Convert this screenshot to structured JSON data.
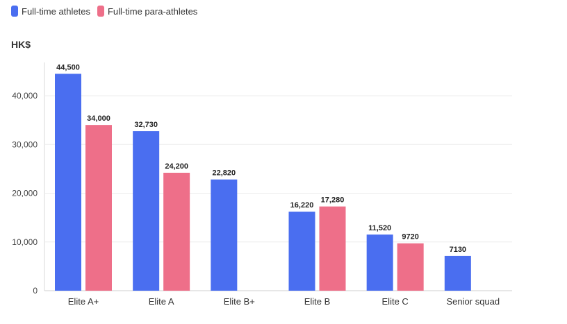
{
  "legend": {
    "items": [
      {
        "label": "Full-time athletes",
        "color": "#4a6ef0"
      },
      {
        "label": "Full-time para-athletes",
        "color": "#ee6f89"
      }
    ]
  },
  "chart_data": {
    "type": "bar",
    "ylabel": "HK$",
    "ylim": [
      0,
      45000
    ],
    "yticks": [
      0,
      10000,
      20000,
      30000,
      40000
    ],
    "ytick_labels": [
      "0",
      "10,000",
      "20,000",
      "30,000",
      "40,000"
    ],
    "grid": true,
    "legend_position": "top-left",
    "categories": [
      "Elite A+",
      "Elite A",
      "Elite B+",
      "Elite B",
      "Elite C",
      "Senior squad"
    ],
    "series": [
      {
        "name": "Full-time athletes",
        "color": "#4a6ef0",
        "values": [
          44500,
          32730,
          22820,
          16220,
          11520,
          7130
        ],
        "labels": [
          "44,500",
          "32,730",
          "22,820",
          "16,220",
          "11,520",
          "7130"
        ]
      },
      {
        "name": "Full-time para-athletes",
        "color": "#ee6f89",
        "values": [
          34000,
          24200,
          null,
          17280,
          9720,
          null
        ],
        "labels": [
          "34,000",
          "24,200",
          null,
          "17,280",
          "9720",
          null
        ]
      }
    ]
  }
}
